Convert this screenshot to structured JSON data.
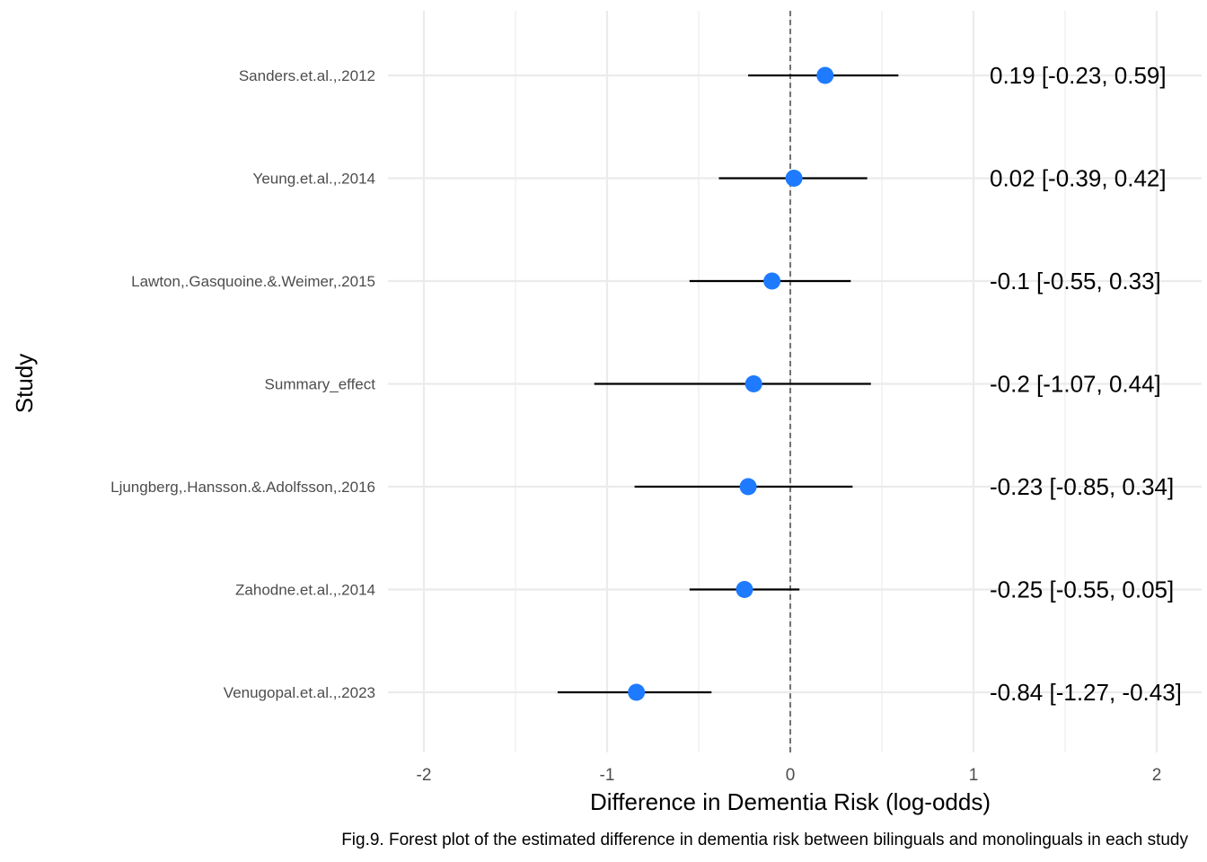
{
  "chart_data": {
    "type": "forest",
    "xlabel": "Difference in Dementia Risk (log-odds)",
    "ylabel": "Study",
    "caption": "Fig.9.  Forest plot of the estimated difference in dementia risk between bilinguals and monolinguals in each study",
    "xlim": [
      -2.0,
      2.0
    ],
    "x_ticks": [
      -2,
      -1,
      0,
      1,
      2
    ],
    "x_tick_labels": [
      "-2",
      "-1",
      "0",
      "1",
      "2"
    ],
    "reference_line": 0,
    "grid": true,
    "point_color": "#1e7bff",
    "studies": [
      {
        "label": "Sanders.et.al.,.2012",
        "estimate": 0.19,
        "lower": -0.23,
        "upper": 0.59,
        "ci_text": "0.19 [-0.23, 0.59]"
      },
      {
        "label": "Yeung.et.al.,.2014",
        "estimate": 0.02,
        "lower": -0.39,
        "upper": 0.42,
        "ci_text": "0.02 [-0.39, 0.42]"
      },
      {
        "label": "Lawton,.Gasquoine.&.Weimer,.2015",
        "estimate": -0.1,
        "lower": -0.55,
        "upper": 0.33,
        "ci_text": "-0.1 [-0.55, 0.33]"
      },
      {
        "label": "Summary_effect",
        "estimate": -0.2,
        "lower": -1.07,
        "upper": 0.44,
        "ci_text": "-0.2 [-1.07, 0.44]"
      },
      {
        "label": "Ljungberg,.Hansson.&.Adolfsson,.2016",
        "estimate": -0.23,
        "lower": -0.85,
        "upper": 0.34,
        "ci_text": "-0.23 [-0.85, 0.34]"
      },
      {
        "label": "Zahodne.et.al.,.2014",
        "estimate": -0.25,
        "lower": -0.55,
        "upper": 0.05,
        "ci_text": "-0.25 [-0.55, 0.05]"
      },
      {
        "label": "Venugopal.et.al.,.2023",
        "estimate": -0.84,
        "lower": -1.27,
        "upper": -0.43,
        "ci_text": "-0.84 [-1.27, -0.43]"
      }
    ]
  }
}
